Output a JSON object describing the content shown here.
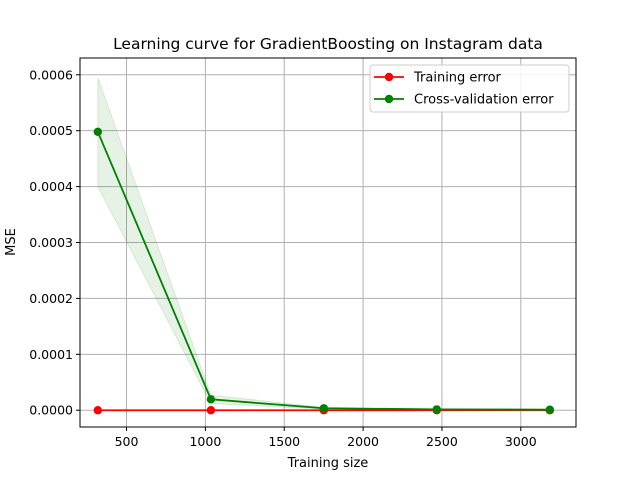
{
  "chart_data": {
    "type": "line",
    "title": "Learning curve for GradientBoosting on Instagram data",
    "xlabel": "Training size",
    "ylabel": "MSE",
    "xlim": [
      205,
      3350
    ],
    "ylim": [
      -3e-05,
      0.00063
    ],
    "xticks": [
      500,
      1000,
      1500,
      2000,
      2500,
      3000
    ],
    "yticks": [
      0.0,
      0.0001,
      0.0002,
      0.0003,
      0.0004,
      0.0005,
      0.0006
    ],
    "ytick_labels": [
      "0.0000",
      "0.0001",
      "0.0002",
      "0.0003",
      "0.0004",
      "0.0005",
      "0.0006"
    ],
    "grid": true,
    "legend_position": "upper right",
    "x": [
      318,
      1035,
      1751,
      2467,
      3184
    ],
    "series": [
      {
        "name": "Training error",
        "color": "#ff0000",
        "values": [
          0.0,
          0.0,
          0.0,
          0.0,
          0.0
        ]
      },
      {
        "name": "Cross-validation error",
        "color": "#008000",
        "band_color": "#008000",
        "values": [
          0.000498,
          1.95e-05,
          3.5e-06,
          1.5e-06,
          1e-06
        ],
        "band_upper": [
          0.000595,
          2.7e-05,
          5e-06,
          2e-06,
          1.5e-06
        ],
        "band_lower": [
          0.0004,
          1.2e-05,
          2e-06,
          1e-06,
          5e-07
        ]
      }
    ]
  }
}
